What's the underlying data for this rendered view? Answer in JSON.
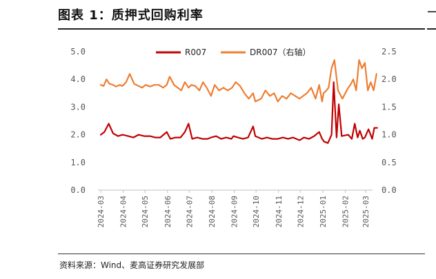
{
  "header": {
    "title": "图表 1：质押式回购利率"
  },
  "footer": {
    "source": "资料来源：Wind、麦高证券研究发展部"
  },
  "colors": {
    "r007": "#c00000",
    "dr007": "#ed7d31",
    "axis": "#bfbfbf",
    "text": "#555555"
  },
  "chart_data": {
    "type": "line",
    "title": "",
    "xlabel": "",
    "ylabel": "",
    "x_ticks": [
      "2024-03",
      "2024-04",
      "2024-05",
      "2024-06",
      "2024-07",
      "2024-08",
      "2024-09",
      "2024-10",
      "2024-11",
      "2024-12",
      "2025-01",
      "2025-02",
      "2025-03"
    ],
    "y_left": {
      "lim": [
        0,
        5
      ],
      "ticks": [
        "0.0",
        "1.0",
        "2.0",
        "3.0",
        "4.0",
        "5.0"
      ]
    },
    "y_right": {
      "lim": [
        0,
        2.5
      ],
      "ticks": [
        "0.0",
        "0.5",
        "1.0",
        "1.5",
        "2.0",
        "2.5"
      ]
    },
    "legend": {
      "position": "top-center",
      "entries": [
        "R007",
        "DR007（右轴）"
      ]
    },
    "series": [
      {
        "name": "R007",
        "axis": "left",
        "x": [
          "2024-03-01",
          "2024-03-06",
          "2024-03-12",
          "2024-03-18",
          "2024-03-25",
          "2024-03-31",
          "2024-04-08",
          "2024-04-15",
          "2024-04-22",
          "2024-04-30",
          "2024-05-08",
          "2024-05-15",
          "2024-05-22",
          "2024-05-31",
          "2024-06-05",
          "2024-06-12",
          "2024-06-19",
          "2024-06-25",
          "2024-06-30",
          "2024-07-05",
          "2024-07-12",
          "2024-07-19",
          "2024-07-26",
          "2024-07-31",
          "2024-08-07",
          "2024-08-14",
          "2024-08-21",
          "2024-08-28",
          "2024-08-31",
          "2024-09-06",
          "2024-09-13",
          "2024-09-20",
          "2024-09-27",
          "2024-09-30",
          "2024-10-09",
          "2024-10-16",
          "2024-10-23",
          "2024-10-31",
          "2024-11-07",
          "2024-11-14",
          "2024-11-21",
          "2024-11-30",
          "2024-12-06",
          "2024-12-13",
          "2024-12-20",
          "2024-12-27",
          "2024-12-31",
          "2025-01-03",
          "2025-01-08",
          "2025-01-13",
          "2025-01-16",
          "2025-01-20",
          "2025-01-23",
          "2025-01-27",
          "2025-02-05",
          "2025-02-10",
          "2025-02-14",
          "2025-02-18",
          "2025-02-21",
          "2025-02-25",
          "2025-02-28",
          "2025-03-05",
          "2025-03-10",
          "2025-03-13",
          "2025-03-17"
        ],
        "values": [
          2.0,
          2.1,
          2.4,
          2.05,
          1.95,
          2.0,
          1.95,
          1.9,
          2.0,
          1.95,
          1.95,
          1.9,
          1.9,
          2.1,
          1.85,
          1.9,
          1.9,
          2.1,
          2.4,
          1.85,
          1.9,
          1.85,
          1.85,
          1.9,
          1.95,
          1.85,
          1.9,
          1.85,
          1.95,
          1.9,
          1.85,
          1.9,
          2.3,
          1.95,
          1.85,
          1.9,
          1.85,
          1.85,
          1.9,
          1.85,
          1.9,
          1.8,
          1.9,
          1.85,
          1.95,
          2.1,
          1.85,
          1.75,
          1.7,
          2.0,
          3.9,
          1.9,
          3.1,
          1.95,
          2.0,
          1.85,
          2.4,
          1.9,
          2.15,
          1.85,
          1.9,
          2.2,
          1.85,
          2.25,
          2.25
        ]
      },
      {
        "name": "DR007（右轴）",
        "axis": "right",
        "x": [
          "2024-03-01",
          "2024-03-05",
          "2024-03-09",
          "2024-03-13",
          "2024-03-18",
          "2024-03-22",
          "2024-03-27",
          "2024-03-31",
          "2024-04-05",
          "2024-04-10",
          "2024-04-16",
          "2024-04-22",
          "2024-04-27",
          "2024-05-02",
          "2024-05-08",
          "2024-05-14",
          "2024-05-20",
          "2024-05-26",
          "2024-05-31",
          "2024-06-04",
          "2024-06-10",
          "2024-06-15",
          "2024-06-20",
          "2024-06-25",
          "2024-06-30",
          "2024-07-04",
          "2024-07-09",
          "2024-07-15",
          "2024-07-20",
          "2024-07-25",
          "2024-07-31",
          "2024-08-05",
          "2024-08-11",
          "2024-08-17",
          "2024-08-23",
          "2024-08-29",
          "2024-09-03",
          "2024-09-09",
          "2024-09-15",
          "2024-09-21",
          "2024-09-27",
          "2024-09-30",
          "2024-10-08",
          "2024-10-14",
          "2024-10-20",
          "2024-10-26",
          "2024-10-31",
          "2024-11-06",
          "2024-11-12",
          "2024-11-18",
          "2024-11-24",
          "2024-11-30",
          "2024-12-05",
          "2024-12-10",
          "2024-12-16",
          "2024-12-22",
          "2024-12-27",
          "2024-12-31",
          "2025-01-02",
          "2025-01-06",
          "2025-01-09",
          "2025-01-13",
          "2025-01-17",
          "2025-01-22",
          "2025-01-28",
          "2025-02-05",
          "2025-02-08",
          "2025-02-12",
          "2025-02-16",
          "2025-02-20",
          "2025-02-24",
          "2025-02-28",
          "2025-03-04",
          "2025-03-08",
          "2025-03-12",
          "2025-03-16"
        ],
        "values": [
          1.9,
          1.88,
          2.0,
          1.92,
          1.9,
          1.87,
          1.9,
          1.88,
          1.95,
          2.1,
          1.92,
          1.88,
          1.85,
          1.9,
          1.87,
          1.9,
          1.9,
          1.85,
          1.9,
          2.05,
          1.9,
          1.85,
          1.8,
          1.95,
          1.85,
          1.9,
          1.88,
          1.8,
          1.95,
          1.85,
          1.7,
          1.9,
          1.8,
          1.85,
          1.8,
          1.85,
          1.95,
          1.88,
          1.75,
          1.65,
          1.75,
          1.6,
          1.65,
          1.8,
          1.7,
          1.75,
          1.6,
          1.7,
          1.65,
          1.75,
          1.7,
          1.65,
          1.7,
          1.75,
          1.85,
          1.65,
          1.9,
          1.6,
          1.75,
          1.8,
          1.85,
          2.2,
          2.35,
          1.8,
          1.65,
          1.85,
          1.9,
          2.0,
          1.8,
          2.35,
          2.2,
          2.3,
          1.8,
          1.95,
          1.8,
          2.1
        ]
      }
    ]
  }
}
